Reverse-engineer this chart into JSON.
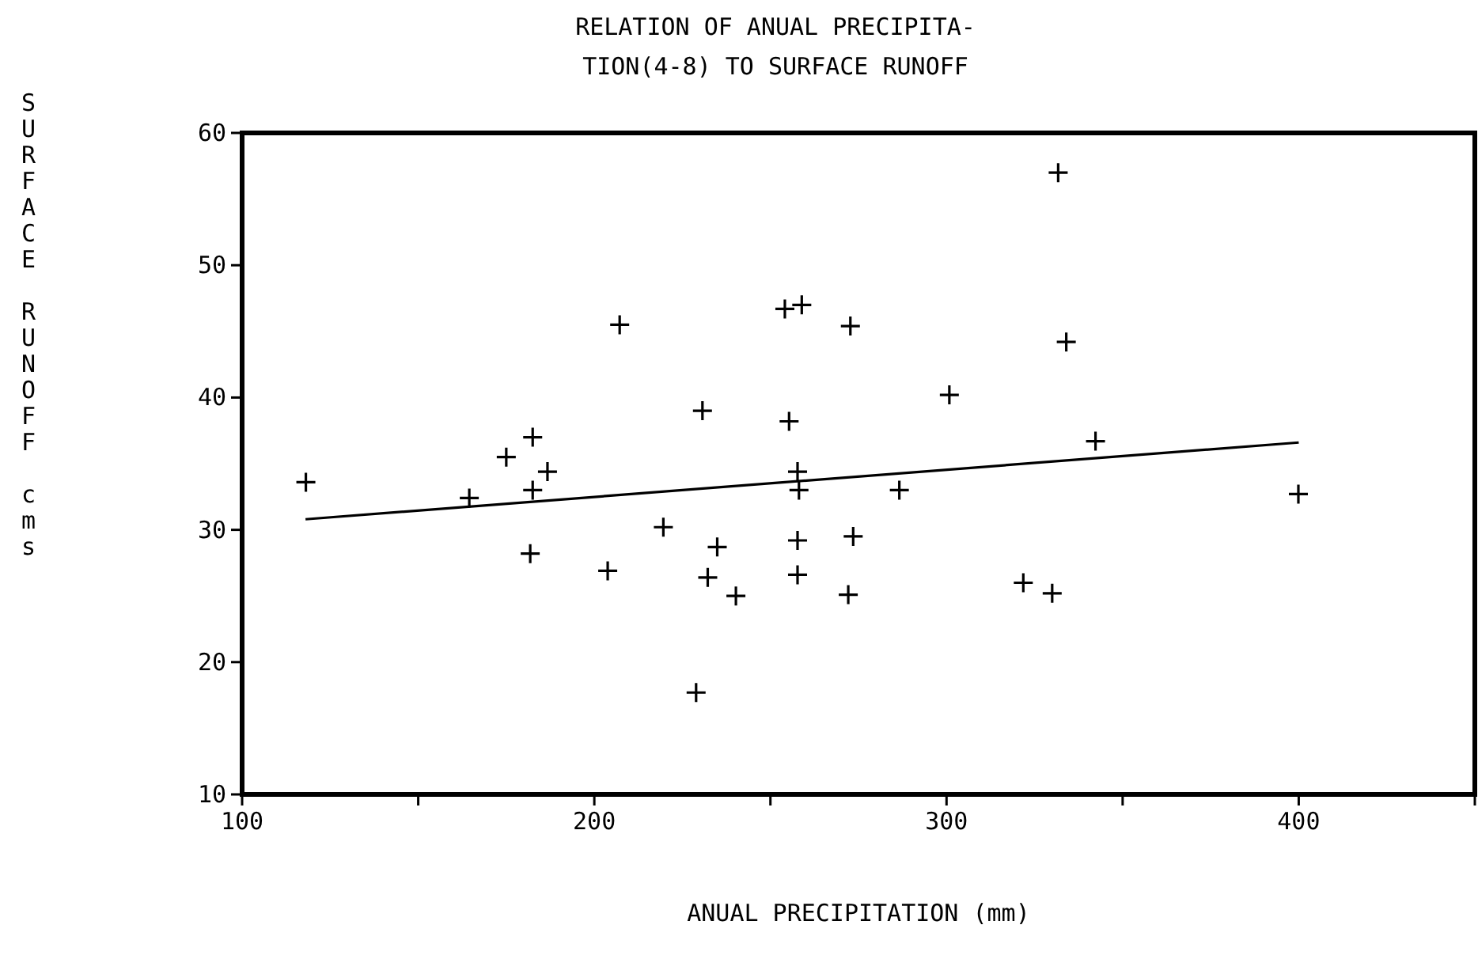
{
  "chart_data": {
    "type": "scatter",
    "title": "RELATION OF ANUAL PRECIPITA-\nTION(4-8) TO SURFACE RUNOFF",
    "xlabel": "ANUAL PRECIPITATION (mm)",
    "ylabel": "SURFACE RUNOFF cms",
    "xlim": [
      100,
      450
    ],
    "xticks": [
      100,
      {
        "value": 150,
        "label": null
      },
      200,
      {
        "value": 250,
        "label": null
      },
      300,
      {
        "value": 350,
        "label": null
      },
      400,
      {
        "value": 450,
        "label": null
      }
    ],
    "ylim": [
      10,
      60
    ],
    "yticks": [
      10,
      20,
      30,
      40,
      50,
      60
    ],
    "grid": false,
    "marker": "cross",
    "series": [
      {
        "color": "#000000",
        "x": [
          118.1,
          164.5,
          175.0,
          181.8,
          182.5,
          182.5,
          186.7,
          203.8,
          207.2,
          219.6,
          228.9,
          230.7,
          232.2,
          234.9,
          240.2,
          254.1,
          255.3,
          257.7,
          257.7,
          257.7,
          258.1,
          258.9,
          272.1,
          272.7,
          273.5,
          286.6,
          300.8,
          321.8,
          330.0,
          331.7,
          334.0,
          342.3,
          399.9
        ],
        "values": [
          33.6,
          32.4,
          35.5,
          28.2,
          37.0,
          33.0,
          34.4,
          26.9,
          45.5,
          30.2,
          17.7,
          39.0,
          26.4,
          28.7,
          25.0,
          46.7,
          38.2,
          34.4,
          29.2,
          26.6,
          33.0,
          47.0,
          25.1,
          45.4,
          29.5,
          33.0,
          40.2,
          26.0,
          25.2,
          57.0,
          44.2,
          36.7,
          32.7
        ]
      },
      {
        "type": "line",
        "color": "#000000",
        "marker": "none",
        "x": [
          118,
          400
        ],
        "values": [
          30.8,
          36.6
        ]
      }
    ]
  }
}
